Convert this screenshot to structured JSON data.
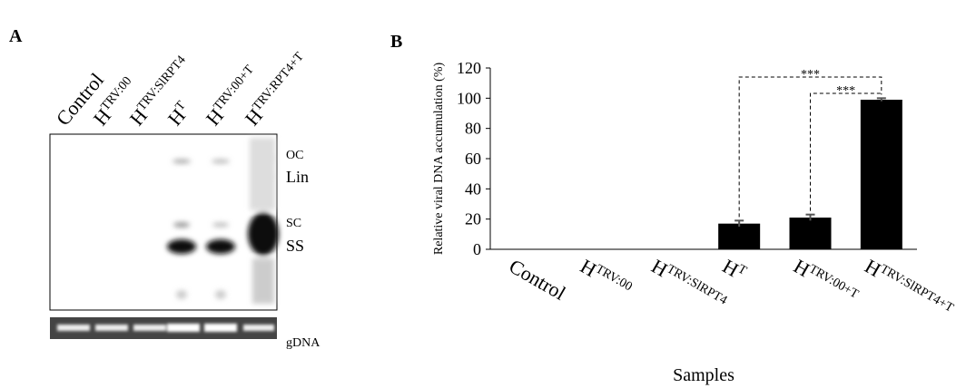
{
  "panel_a": {
    "label": "A",
    "lanes": [
      {
        "base": "Control"
      },
      {
        "base": "H",
        "sup": "TRV:00"
      },
      {
        "base": "H",
        "sup": "TRV:SlRPT4"
      },
      {
        "base": "H",
        "sup": "T"
      },
      {
        "base": "H",
        "sup": "TRV:00+T"
      },
      {
        "base": "H",
        "sup": "TRV:RPT4+T"
      }
    ],
    "band_labels": [
      "OC",
      "Lin",
      "SC",
      "SS"
    ],
    "loading_label": "gDNA"
  },
  "chart_data": {
    "type": "bar",
    "label": "B",
    "categories": [
      "Control",
      "H",
      "H",
      "H",
      "H",
      "H"
    ],
    "category_superscripts": [
      null,
      "TRV:00",
      "TRV:SlRPT4",
      "T",
      "TRV:00+T",
      "TRV:SlRPT4+T"
    ],
    "values": [
      0,
      0,
      0,
      17,
      21,
      99
    ],
    "errors": [
      0,
      0,
      0,
      2,
      2,
      1
    ],
    "color": "#000000",
    "ylim": [
      0,
      120
    ],
    "yticks": [
      0,
      20,
      40,
      60,
      80,
      100,
      120
    ],
    "y_label": "Relative viral DNA accumulation (%)",
    "x_label": "Samples",
    "annotations": [
      {
        "text": "***",
        "from": 3,
        "to": 5
      },
      {
        "text": "***",
        "from": 4,
        "to": 5
      }
    ]
  }
}
